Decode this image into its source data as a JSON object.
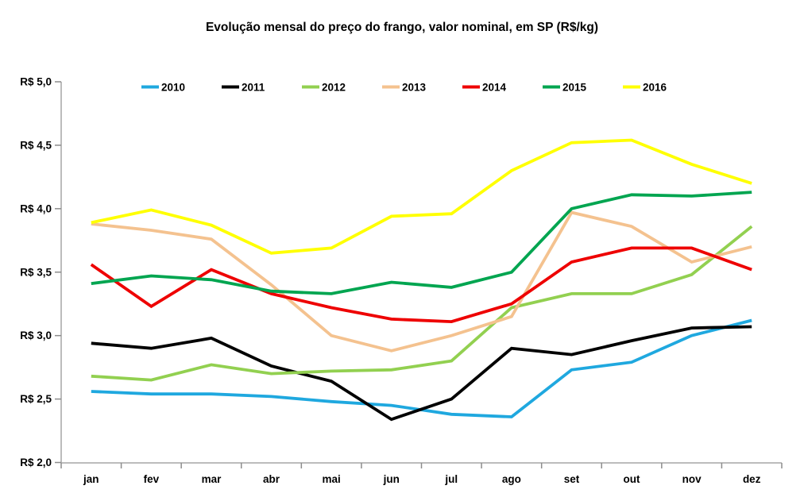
{
  "title": "Evolução mensal do preço do frango, valor nominal, em SP (R$/kg)",
  "axis_color": "#a6a6a6",
  "tick_color": "#8c8c8c",
  "chart_data": {
    "type": "line",
    "title": "Evolução mensal do preço do frango, valor nominal, em SP (R$/kg)",
    "xlabel": "",
    "ylabel": "",
    "grid": false,
    "legend_position": "top",
    "ylim": [
      2.0,
      5.0
    ],
    "y_ticks": [
      5.0,
      4.5,
      4.0,
      3.5,
      3.0,
      2.5,
      2.0
    ],
    "y_tick_labels": [
      "R$ 5,0",
      "R$ 4,5",
      "R$ 4,0",
      "R$ 3,5",
      "R$ 3,0",
      "R$ 2,5",
      "R$ 2,0"
    ],
    "categories": [
      "jan",
      "fev",
      "mar",
      "abr",
      "mai",
      "jun",
      "jul",
      "ago",
      "set",
      "out",
      "nov",
      "dez"
    ],
    "series": [
      {
        "name": "2010",
        "color": "#1fa8df",
        "values": [
          2.56,
          2.54,
          2.54,
          2.52,
          2.48,
          2.45,
          2.38,
          2.36,
          2.73,
          2.79,
          3.0,
          3.12
        ]
      },
      {
        "name": "2011",
        "color": "#000000",
        "values": [
          2.94,
          2.9,
          2.98,
          2.76,
          2.64,
          2.34,
          2.5,
          2.9,
          2.85,
          2.96,
          3.06,
          3.07
        ]
      },
      {
        "name": "2012",
        "color": "#92d050",
        "values": [
          2.68,
          2.65,
          2.77,
          2.7,
          2.72,
          2.73,
          2.8,
          3.22,
          3.33,
          3.33,
          3.48,
          3.86
        ]
      },
      {
        "name": "2013",
        "color": "#f4c28f",
        "values": [
          3.88,
          3.83,
          3.76,
          3.4,
          3.0,
          2.88,
          3.0,
          3.15,
          3.97,
          3.86,
          3.58,
          3.7
        ]
      },
      {
        "name": "2014",
        "color": "#ee0000",
        "values": [
          3.56,
          3.23,
          3.52,
          3.33,
          3.22,
          3.13,
          3.11,
          3.25,
          3.58,
          3.69,
          3.69,
          3.52
        ]
      },
      {
        "name": "2015",
        "color": "#00a550",
        "values": [
          3.41,
          3.47,
          3.44,
          3.35,
          3.33,
          3.42,
          3.38,
          3.5,
          4.0,
          4.11,
          4.1,
          4.13
        ]
      },
      {
        "name": "2016",
        "color": "#ffff00",
        "values": [
          3.89,
          3.99,
          3.87,
          3.65,
          3.69,
          3.94,
          3.96,
          4.3,
          4.52,
          4.54,
          4.35,
          4.2
        ]
      }
    ]
  }
}
